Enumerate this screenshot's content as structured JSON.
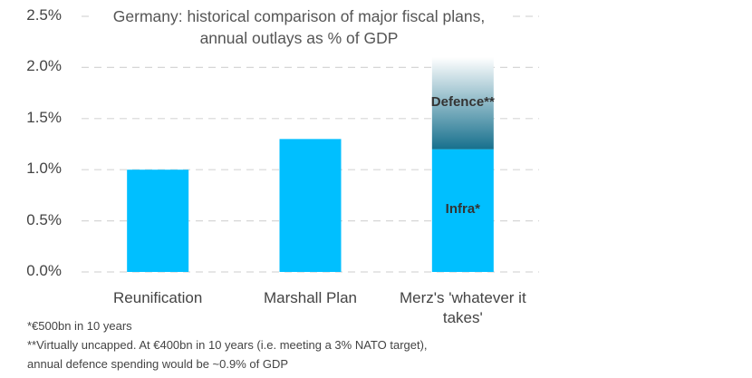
{
  "chart_data": {
    "type": "stacked_bar",
    "title": "Germany: historical comparison of major fiscal plans, annual outlays as % of GDP",
    "categories": [
      "Reunification",
      "Marshall Plan",
      "Merz's 'whatever it takes'"
    ],
    "series": [
      {
        "color": "#00bfff",
        "values": [
          1.0,
          1.3,
          null
        ]
      },
      {
        "name": "Infra*",
        "color": "#00bfff",
        "values": [
          null,
          null,
          1.2
        ]
      },
      {
        "name": "Defence**",
        "color": "#17708d",
        "gradient": true,
        "values": [
          null,
          null,
          0.9
        ]
      }
    ],
    "ylim": [
      0,
      2.5
    ],
    "yticks": [
      {
        "value": 0,
        "label": "0.0%"
      },
      {
        "value": 0.5,
        "label": "0.5%"
      },
      {
        "value": 1,
        "label": "1.0%"
      },
      {
        "value": 1.5,
        "label": "1.5%"
      },
      {
        "value": 2,
        "label": "2.0%"
      },
      {
        "value": 2.5,
        "label": "2.5%"
      }
    ],
    "grid": true,
    "notes": [
      "*€500bn in 10 years",
      "**Virtually uncapped. At €400bn in 10 years (i.e. meeting a 3% NATO target),",
      "annual defence spending would be ~0.9% of GDP"
    ]
  }
}
